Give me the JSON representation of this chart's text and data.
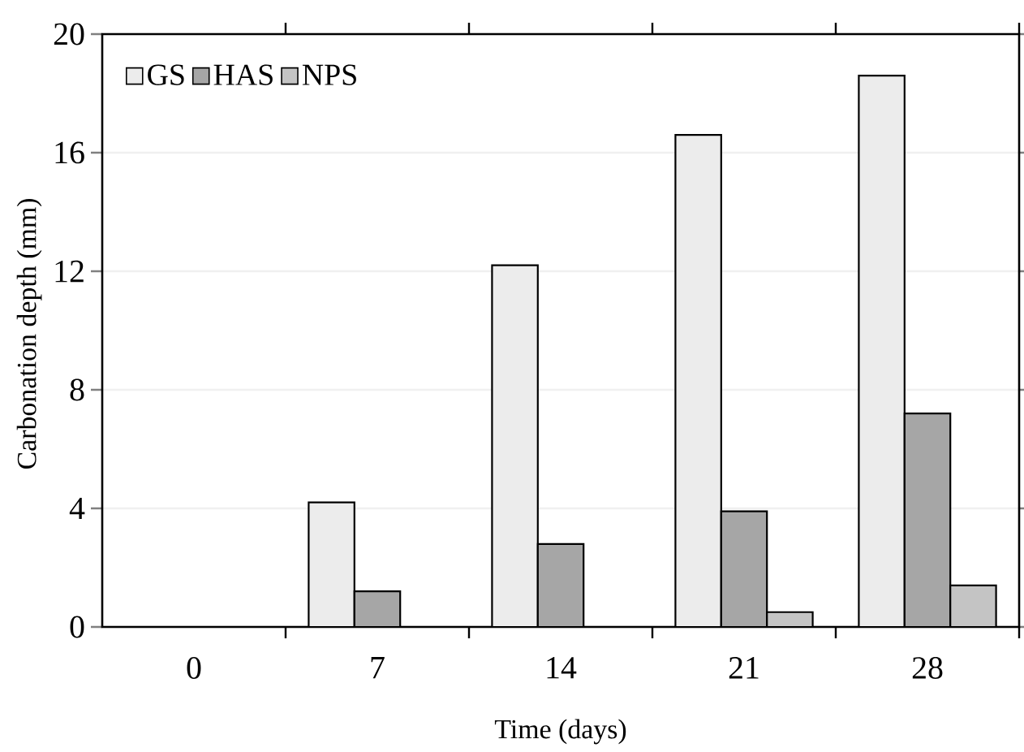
{
  "chart_data": {
    "type": "bar",
    "xlabel": "Time (days)",
    "ylabel": "Carbonation depth (mm)",
    "categories": [
      "0",
      "7",
      "14",
      "21",
      "28"
    ],
    "series": [
      {
        "name": "GS",
        "color": "#ececec",
        "values": [
          0,
          4.2,
          12.2,
          16.6,
          18.6
        ]
      },
      {
        "name": "HAS",
        "color": "#a6a6a6",
        "values": [
          0,
          1.2,
          2.8,
          3.9,
          7.2
        ]
      },
      {
        "name": "NPS",
        "color": "#c4c4c4",
        "values": [
          0,
          0,
          0,
          0.5,
          1.4
        ]
      }
    ],
    "ylim": [
      0,
      20
    ],
    "yticks": [
      0,
      4,
      8,
      12,
      16,
      20
    ],
    "grid": "y",
    "legend": "top left"
  }
}
